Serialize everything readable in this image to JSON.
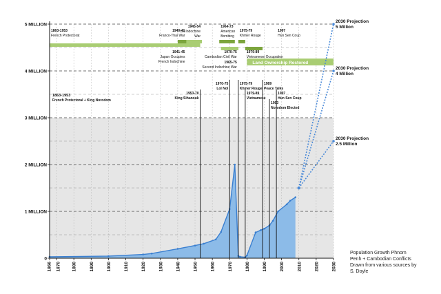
{
  "chart_data": {
    "type": "area",
    "x_ticks": [
      1866,
      1870,
      1880,
      1890,
      1900,
      1910,
      1920,
      1930,
      1940,
      1950,
      1960,
      1970,
      1980,
      1990,
      2000,
      2010,
      2020,
      2030
    ],
    "x_range": [
      1866,
      2030
    ],
    "y_range": [
      0,
      5000000
    ],
    "y_ticks": [
      {
        "v": 0,
        "label": "0"
      },
      {
        "v": 1000000,
        "label": "1 MILLION"
      },
      {
        "v": 2000000,
        "label": "2 MILLION"
      },
      {
        "v": 3000000,
        "label": "3 MILLION"
      },
      {
        "v": 4000000,
        "label": "4 MILLION"
      },
      {
        "v": 5000000,
        "label": "5 MILLION"
      }
    ],
    "grid": true,
    "population": {
      "x": [
        1866,
        1900,
        1920,
        1925,
        1940,
        1950,
        1955,
        1962,
        1965,
        1970,
        1973,
        1975,
        1976,
        1979,
        1980,
        1985,
        1988,
        1990,
        1993,
        1995,
        1998,
        2003,
        2005,
        2008
      ],
      "y": [
        30000,
        45000,
        80000,
        100000,
        200000,
        270000,
        310000,
        400000,
        560000,
        1050000,
        2000000,
        50000,
        30000,
        20000,
        60000,
        550000,
        600000,
        630000,
        700000,
        800000,
        1000000,
        1150000,
        1230000,
        1300000
      ]
    },
    "projections": [
      {
        "label": "2030 Projection",
        "value_label": "5 Million",
        "from": [
          2010,
          1500000
        ],
        "to": [
          2030,
          5000000
        ]
      },
      {
        "label": "2030 Projection",
        "value_label": "4 Million",
        "from": [
          2010,
          1500000
        ],
        "to": [
          2030,
          4000000
        ]
      },
      {
        "label": "2030 Projection",
        "value_label": "2.5 Million",
        "from": [
          2010,
          1500000
        ],
        "to": [
          2030,
          2500000
        ]
      }
    ],
    "timeline_bands": [
      {
        "start": 1866,
        "end": 1953,
        "row": 1,
        "color": "#a9cd73"
      },
      {
        "start": 1940,
        "end": 1945,
        "row": 0,
        "color": "#7ca53d"
      },
      {
        "start": 1945,
        "end": 1954,
        "row": 0,
        "color": "#a9cd73"
      },
      {
        "start": 1964,
        "end": 1973,
        "row": 0,
        "color": "#7ca53d"
      },
      {
        "start": 1970,
        "end": 1975,
        "row": 2,
        "color": "#7ca53d"
      },
      {
        "start": 1965,
        "end": 1975,
        "row": 2,
        "color": "#a9cd73"
      },
      {
        "start": 1975,
        "end": 1979,
        "row": 0,
        "color": "#7ca53d"
      },
      {
        "start": 1979,
        "end": 1989,
        "row": 2,
        "color": "#7ca53d"
      },
      {
        "start": 1980,
        "end": 2030,
        "row": 3,
        "color": "#a9cd73"
      }
    ],
    "timeline_labels": [
      {
        "anchor_year": 1866,
        "align": "start",
        "row": "top",
        "lines": [
          "1863-1953",
          "French Protectorat"
        ]
      },
      {
        "anchor_year": 1945,
        "align": "end",
        "row": "top",
        "lines": [
          "1940-41",
          "Franco-Thai War"
        ]
      },
      {
        "anchor_year": 1954,
        "align": "end",
        "row": "top",
        "lines": [
          "1945-54",
          "1st Indochine",
          "War"
        ]
      },
      {
        "anchor_year": 1964,
        "align": "start",
        "row": "top",
        "lines": [
          "1964-73",
          "American",
          "Bombing"
        ]
      },
      {
        "anchor_year": 1975,
        "align": "start",
        "row": "top",
        "lines": [
          "1975-79",
          "Khmer Rouge"
        ]
      },
      {
        "anchor_year": 1997,
        "align": "start",
        "row": "top",
        "lines": [
          "1997",
          "Hun Sen Coup"
        ]
      },
      {
        "anchor_year": 1945,
        "align": "end",
        "row": "bottom",
        "lines": [
          "1941-45",
          "Japan Occupies",
          "French Indochine"
        ]
      },
      {
        "anchor_year": 1975,
        "align": "end",
        "row": "bottom",
        "lines": [
          "1970-75",
          "Cambodian Civil War"
        ]
      },
      {
        "anchor_year": 1975,
        "align": "end",
        "row": "bottom2",
        "lines": [
          "1965-75",
          "Second Indochine War"
        ]
      },
      {
        "anchor_year": 1979,
        "align": "start",
        "row": "bottom",
        "lines": [
          "1979-89",
          "Vietnamese Occupation"
        ]
      }
    ],
    "land_banner": "Land Ownership Restored",
    "events": [
      {
        "year": 1953,
        "lines": [
          "1953-70",
          "King Sihanouk"
        ],
        "level": 2
      },
      {
        "year": 1970,
        "lines": [
          "1970-75",
          "Lol Nol"
        ],
        "level": 1
      },
      {
        "year": 1975,
        "lines": [
          "1975-79",
          "Khmer Rouge"
        ],
        "level": 1
      },
      {
        "year": 1979,
        "lines": [
          "1979-89",
          "Vietnamese"
        ],
        "level": 2
      },
      {
        "year": 1989,
        "lines": [
          "1989",
          "Peace Talks"
        ],
        "level": 1
      },
      {
        "year": 1993,
        "lines": [
          "1993",
          "Norodom Elected"
        ],
        "level": 3
      },
      {
        "year": 1997,
        "lines": [
          "1997",
          "Hun Sen Coup"
        ],
        "level": 2
      }
    ],
    "left_note": [
      "1863-1953",
      "French Protectoral + King Norodom"
    ],
    "title": "",
    "xlabel": "",
    "ylabel": ""
  },
  "credit": [
    "Population Growth Phnom",
    "Penh + Cambodian Conflicts",
    "Drawn from various sources by",
    "S. Doyle"
  ],
  "colors": {
    "population_fill": "#8cbbe8",
    "population_line": "#3a7fd0",
    "projection": "#4a8ad8",
    "shaded_region": "#e6e6e6",
    "band_light": "#a9cd73",
    "band_dark": "#7ca53d"
  }
}
